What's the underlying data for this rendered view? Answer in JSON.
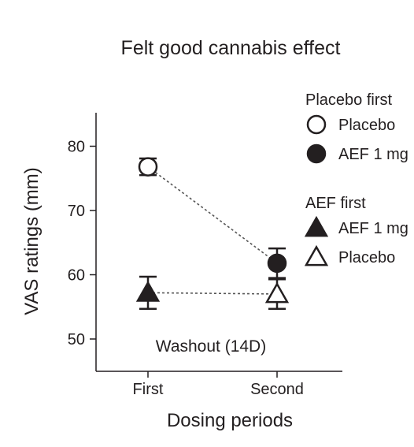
{
  "chart_data": {
    "type": "line",
    "title": "Felt good cannabis effect",
    "xlabel": "Dosing periods",
    "ylabel": "VAS ratings (mm)",
    "categories": [
      "First",
      "Second"
    ],
    "ylim": [
      45,
      83
    ],
    "yticks": [
      50,
      60,
      70,
      80
    ],
    "annotation": "Washout (14D)",
    "series": [
      {
        "group": "Placebo first",
        "marker": "circle",
        "points": [
          {
            "period": "First",
            "name": "Placebo",
            "filled": false,
            "value": 76.8,
            "err": 1.3
          },
          {
            "period": "Second",
            "name": "AEF 1 mg",
            "filled": true,
            "value": 61.8,
            "err": 2.3
          }
        ]
      },
      {
        "group": "AEF first",
        "marker": "triangle",
        "points": [
          {
            "period": "First",
            "name": "AEF 1 mg",
            "filled": true,
            "value": 57.2,
            "err": 2.5
          },
          {
            "period": "Second",
            "name": "Placebo",
            "filled": false,
            "value": 57.0,
            "err": 2.3
          }
        ]
      }
    ],
    "legend": {
      "placement": "right",
      "groups": [
        {
          "title": "Placebo first",
          "items": [
            {
              "label": "Placebo",
              "marker": "circle",
              "filled": false
            },
            {
              "label": "AEF 1 mg",
              "marker": "circle",
              "filled": true
            }
          ]
        },
        {
          "title": "AEF first",
          "items": [
            {
              "label": "AEF 1 mg",
              "marker": "triangle",
              "filled": true
            },
            {
              "label": "Placebo",
              "marker": "triangle",
              "filled": false
            }
          ]
        }
      ]
    },
    "grid": false,
    "colors": {
      "ink": "#231f20",
      "connector": "#555555",
      "background": "#ffffff"
    }
  }
}
